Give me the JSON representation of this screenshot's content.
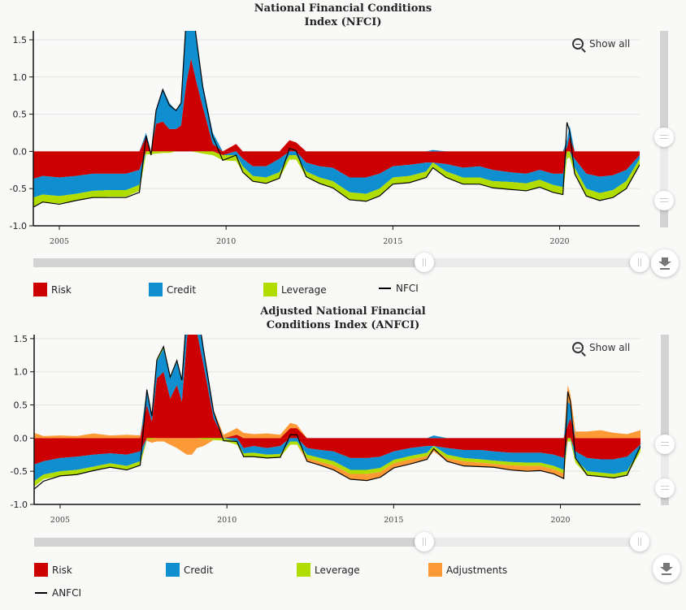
{
  "colors": {
    "risk": "#cc0000",
    "credit": "#0f8fcf",
    "leverage": "#b0dc00",
    "adjustments": "#fd9a35",
    "index": "#000000",
    "grid": "#e3e3e3"
  },
  "show_all_label": "Show all",
  "charts": {
    "nfci": {
      "title_line1": "National Financial Conditions",
      "title_line2": "Index (NFCI)",
      "legend": [
        {
          "key": "risk",
          "label": "Risk",
          "type": "swatch"
        },
        {
          "key": "credit",
          "label": "Credit",
          "type": "swatch"
        },
        {
          "key": "leverage",
          "label": "Leverage",
          "type": "swatch"
        },
        {
          "key": "index",
          "label": "NFCI",
          "type": "line"
        }
      ],
      "navigator_selection": [
        0.65,
        1.0
      ]
    },
    "anfci": {
      "title_line1": "Adjusted National Financial",
      "title_line2": "Conditions Index (ANFCI)",
      "legend": [
        {
          "key": "risk",
          "label": "Risk",
          "type": "swatch"
        },
        {
          "key": "credit",
          "label": "Credit",
          "type": "swatch"
        },
        {
          "key": "leverage",
          "label": "Leverage",
          "type": "swatch"
        },
        {
          "key": "adjustments",
          "label": "Adjustments",
          "type": "swatch"
        },
        {
          "key": "index",
          "label": "ANFCI",
          "type": "line"
        }
      ],
      "navigator_selection": [
        0.65,
        1.0
      ]
    }
  },
  "chart_data": [
    {
      "type": "area",
      "stacked": true,
      "title": "National Financial Conditions Index (NFCI)",
      "xlabel": "",
      "ylabel": "",
      "xlim": [
        2004.22,
        2022.4
      ],
      "ylim": [
        -1.0,
        1.62
      ],
      "yticks": [
        -1.0,
        -0.5,
        0.0,
        0.5,
        1.0,
        1.5
      ],
      "ytick_labels": [
        "-1.0",
        "-0.5",
        "0.0",
        "0.5",
        "1.0",
        "1.5"
      ],
      "xticks": [
        2005,
        2010,
        2015,
        2020
      ],
      "xtick_labels": [
        "2005",
        "2010",
        "2015",
        "2020"
      ],
      "grid": true,
      "legend_position": "bottom",
      "x": [
        2004.22,
        2004.5,
        2005.0,
        2005.5,
        2006.0,
        2006.5,
        2007.0,
        2007.4,
        2007.6,
        2007.75,
        2007.9,
        2008.1,
        2008.3,
        2008.5,
        2008.65,
        2008.8,
        2008.95,
        2009.1,
        2009.3,
        2009.6,
        2009.9,
        2010.3,
        2010.5,
        2010.8,
        2011.2,
        2011.6,
        2011.9,
        2012.1,
        2012.4,
        2012.8,
        2013.2,
        2013.7,
        2014.2,
        2014.6,
        2015.0,
        2015.5,
        2016.0,
        2016.2,
        2016.6,
        2017.1,
        2017.6,
        2018.0,
        2018.5,
        2019.0,
        2019.4,
        2019.8,
        2020.1,
        2020.22,
        2020.3,
        2020.45,
        2020.8,
        2021.2,
        2021.6,
        2022.0,
        2022.4
      ],
      "series": [
        {
          "name": "Risk",
          "values": [
            -0.37,
            -0.33,
            -0.35,
            -0.33,
            -0.3,
            -0.3,
            -0.3,
            -0.25,
            0.2,
            0.0,
            0.37,
            0.4,
            0.3,
            0.3,
            0.35,
            0.9,
            1.25,
            0.95,
            0.6,
            0.1,
            -0.05,
            0.1,
            -0.1,
            -0.2,
            -0.2,
            -0.1,
            0.15,
            0.12,
            -0.15,
            -0.2,
            -0.22,
            -0.35,
            -0.35,
            -0.3,
            -0.2,
            -0.18,
            -0.15,
            -0.15,
            -0.17,
            -0.22,
            -0.2,
            -0.25,
            -0.28,
            -0.3,
            -0.25,
            -0.3,
            -0.3,
            0.05,
            0.2,
            -0.1,
            -0.3,
            -0.34,
            -0.32,
            -0.25,
            -0.05
          ]
        },
        {
          "name": "Credit",
          "values": [
            -0.25,
            -0.25,
            -0.25,
            -0.24,
            -0.23,
            -0.22,
            -0.22,
            -0.2,
            0.05,
            0.0,
            0.2,
            0.45,
            0.35,
            0.25,
            0.3,
            0.9,
            0.9,
            0.6,
            0.3,
            0.15,
            0.0,
            -0.05,
            -0.1,
            -0.13,
            -0.15,
            -0.18,
            -0.05,
            -0.05,
            -0.12,
            -0.15,
            -0.18,
            -0.2,
            -0.22,
            -0.2,
            -0.15,
            -0.15,
            -0.12,
            0.02,
            -0.1,
            -0.13,
            -0.15,
            -0.15,
            -0.13,
            -0.13,
            -0.13,
            -0.15,
            -0.18,
            0.1,
            0.15,
            -0.12,
            -0.2,
            -0.22,
            -0.2,
            -0.15,
            -0.05
          ]
        },
        {
          "name": "Leverage",
          "values": [
            -0.12,
            -0.1,
            -0.1,
            -0.09,
            -0.09,
            -0.09,
            -0.09,
            -0.08,
            -0.04,
            -0.04,
            -0.03,
            -0.02,
            -0.02,
            0.0,
            0.0,
            0.0,
            0.0,
            -0.01,
            -0.03,
            -0.05,
            -0.07,
            -0.08,
            -0.08,
            -0.08,
            -0.08,
            -0.08,
            -0.06,
            -0.06,
            -0.07,
            -0.08,
            -0.09,
            -0.1,
            -0.1,
            -0.1,
            -0.09,
            -0.09,
            -0.08,
            -0.08,
            -0.08,
            -0.09,
            -0.09,
            -0.09,
            -0.1,
            -0.1,
            -0.1,
            -0.1,
            -0.1,
            -0.1,
            -0.08,
            -0.08,
            -0.1,
            -0.1,
            -0.1,
            -0.1,
            -0.08
          ]
        },
        {
          "name": "NFCI",
          "line": true,
          "values": [
            -0.75,
            -0.68,
            -0.71,
            -0.66,
            -0.62,
            -0.62,
            -0.62,
            -0.55,
            0.21,
            -0.05,
            0.55,
            0.83,
            0.62,
            0.55,
            0.65,
            1.75,
            2.1,
            1.55,
            0.87,
            0.2,
            -0.12,
            -0.05,
            -0.28,
            -0.4,
            -0.43,
            -0.36,
            0.04,
            0.01,
            -0.34,
            -0.43,
            -0.49,
            -0.65,
            -0.67,
            -0.6,
            -0.44,
            -0.42,
            -0.35,
            -0.22,
            -0.35,
            -0.44,
            -0.44,
            -0.49,
            -0.51,
            -0.53,
            -0.48,
            -0.55,
            -0.58,
            0.39,
            0.27,
            -0.3,
            -0.6,
            -0.66,
            -0.62,
            -0.5,
            -0.18
          ]
        }
      ]
    },
    {
      "type": "area",
      "stacked": true,
      "title": "Adjusted National Financial Conditions Index (ANFCI)",
      "xlabel": "",
      "ylabel": "",
      "xlim": [
        2004.22,
        2022.4
      ],
      "ylim": [
        -1.0,
        1.56
      ],
      "yticks": [
        -1.0,
        -0.5,
        0.0,
        0.5,
        1.0,
        1.5
      ],
      "ytick_labels": [
        "-1.0",
        "-0.5",
        "0.0",
        "0.5",
        "1.0",
        "1.5"
      ],
      "xticks": [
        2005,
        2010,
        2015,
        2020
      ],
      "xtick_labels": [
        "2005",
        "2010",
        "2015",
        "2020"
      ],
      "grid": true,
      "legend_position": "bottom",
      "x": [
        2004.22,
        2004.5,
        2005.0,
        2005.5,
        2006.0,
        2006.5,
        2007.0,
        2007.4,
        2007.6,
        2007.75,
        2007.9,
        2008.1,
        2008.3,
        2008.5,
        2008.65,
        2008.8,
        2008.95,
        2009.1,
        2009.3,
        2009.6,
        2009.9,
        2010.3,
        2010.5,
        2010.8,
        2011.2,
        2011.6,
        2011.9,
        2012.1,
        2012.4,
        2012.8,
        2013.2,
        2013.7,
        2014.2,
        2014.6,
        2015.0,
        2015.5,
        2016.0,
        2016.2,
        2016.6,
        2017.1,
        2017.6,
        2018.0,
        2018.5,
        2019.0,
        2019.4,
        2019.8,
        2020.1,
        2020.22,
        2020.3,
        2020.45,
        2020.8,
        2021.2,
        2021.6,
        2022.0,
        2022.4
      ],
      "series": [
        {
          "name": "Risk",
          "values": [
            -0.4,
            -0.35,
            -0.3,
            -0.28,
            -0.25,
            -0.23,
            -0.25,
            -0.2,
            0.5,
            0.25,
            0.9,
            1.0,
            0.6,
            0.8,
            0.55,
            1.5,
            2.0,
            1.6,
            1.1,
            0.3,
            0.0,
            0.05,
            -0.15,
            -0.12,
            -0.15,
            -0.12,
            0.15,
            0.15,
            -0.15,
            -0.18,
            -0.2,
            -0.3,
            -0.3,
            -0.28,
            -0.2,
            -0.15,
            -0.12,
            -0.12,
            -0.15,
            -0.18,
            -0.18,
            -0.2,
            -0.22,
            -0.22,
            -0.22,
            -0.25,
            -0.3,
            0.2,
            0.3,
            -0.2,
            -0.3,
            -0.32,
            -0.32,
            -0.28,
            -0.1
          ]
        },
        {
          "name": "Credit",
          "values": [
            -0.25,
            -0.2,
            -0.2,
            -0.2,
            -0.18,
            -0.15,
            -0.17,
            -0.15,
            0.25,
            0.1,
            0.25,
            0.35,
            0.3,
            0.35,
            0.3,
            0.4,
            0.45,
            0.4,
            0.25,
            0.1,
            0.0,
            -0.05,
            -0.08,
            -0.1,
            -0.1,
            -0.12,
            -0.05,
            -0.05,
            -0.1,
            -0.12,
            -0.15,
            -0.18,
            -0.18,
            -0.17,
            -0.13,
            -0.12,
            -0.1,
            0.04,
            -0.1,
            -0.12,
            -0.14,
            -0.14,
            -0.14,
            -0.15,
            -0.15,
            -0.17,
            -0.18,
            0.35,
            0.2,
            -0.12,
            -0.2,
            -0.2,
            -0.22,
            -0.22,
            -0.05
          ]
        },
        {
          "name": "Leverage",
          "values": [
            -0.08,
            -0.07,
            -0.07,
            -0.07,
            -0.06,
            -0.06,
            -0.06,
            -0.06,
            -0.02,
            -0.02,
            0.03,
            0.03,
            0.02,
            0.02,
            0.02,
            0.0,
            0.0,
            0.0,
            -0.02,
            -0.03,
            -0.04,
            -0.05,
            -0.05,
            -0.06,
            -0.05,
            -0.05,
            -0.05,
            -0.05,
            -0.05,
            -0.06,
            -0.06,
            -0.06,
            -0.06,
            -0.06,
            -0.05,
            -0.05,
            -0.05,
            -0.05,
            -0.05,
            -0.05,
            -0.05,
            -0.05,
            -0.05,
            -0.05,
            -0.05,
            -0.05,
            -0.05,
            -0.05,
            -0.05,
            -0.05,
            -0.06,
            -0.06,
            -0.06,
            -0.06,
            -0.05
          ]
        },
        {
          "name": "Adjustments",
          "values": [
            0.08,
            0.03,
            0.04,
            0.03,
            0.07,
            0.04,
            0.05,
            0.04,
            -0.02,
            -0.05,
            -0.05,
            -0.05,
            -0.1,
            -0.15,
            -0.2,
            -0.25,
            -0.25,
            -0.15,
            -0.1,
            0.02,
            0.05,
            0.1,
            0.08,
            0.06,
            0.07,
            0.05,
            0.08,
            0.05,
            -0.05,
            -0.05,
            -0.07,
            -0.08,
            -0.1,
            -0.08,
            -0.07,
            -0.07,
            -0.05,
            -0.03,
            -0.05,
            -0.07,
            -0.06,
            -0.05,
            -0.07,
            -0.08,
            -0.07,
            -0.07,
            -0.08,
            0.25,
            0.15,
            0.1,
            0.1,
            0.12,
            0.08,
            0.06,
            0.12
          ]
        },
        {
          "name": "ANFCI",
          "line": true,
          "values": [
            -0.77,
            -0.65,
            -0.57,
            -0.55,
            -0.49,
            -0.44,
            -0.48,
            -0.41,
            0.73,
            0.33,
            1.18,
            1.38,
            0.92,
            1.17,
            0.87,
            1.9,
            2.45,
            2.0,
            1.33,
            0.4,
            -0.04,
            -0.05,
            -0.28,
            -0.28,
            -0.3,
            -0.29,
            0.05,
            0.05,
            -0.35,
            -0.41,
            -0.48,
            -0.62,
            -0.64,
            -0.59,
            -0.45,
            -0.39,
            -0.32,
            -0.16,
            -0.35,
            -0.42,
            -0.43,
            -0.44,
            -0.48,
            -0.5,
            -0.49,
            -0.54,
            -0.61,
            0.7,
            0.55,
            -0.3,
            -0.56,
            -0.58,
            -0.6,
            -0.56,
            -0.12
          ]
        }
      ]
    }
  ]
}
